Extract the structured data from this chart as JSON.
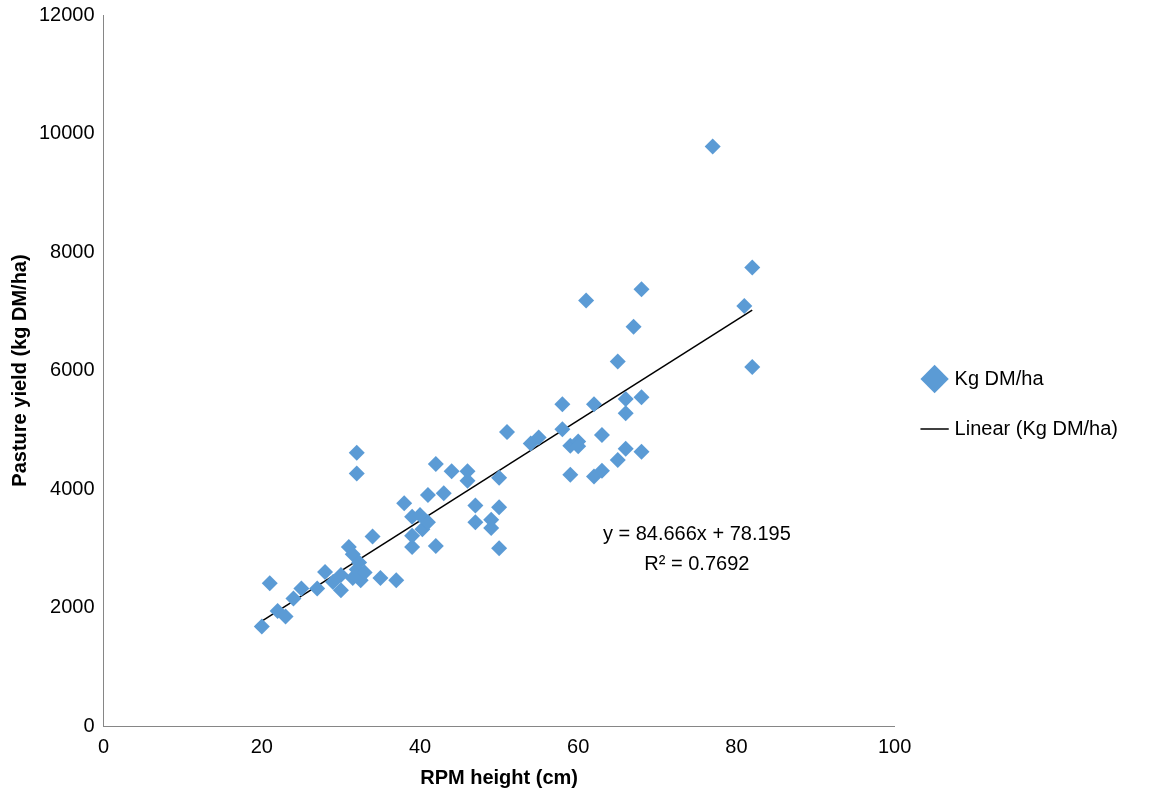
{
  "chart_data": {
    "type": "scatter",
    "xlabel": "RPM height (cm)",
    "ylabel": "Pasture yield (kg DM/ha)",
    "xlim": [
      0,
      100
    ],
    "xticks": [
      0,
      20,
      40,
      60,
      80,
      100
    ],
    "ylim": [
      0,
      12000
    ],
    "yticks": [
      0,
      2000,
      4000,
      6000,
      8000,
      10000,
      12000
    ],
    "grid": false,
    "legend": "right",
    "marker": "diamond",
    "series": [
      {
        "name": "Kg DM/ha",
        "color": "#5b9bd5",
        "x": [
          20,
          21,
          22,
          23,
          24,
          25,
          27,
          28,
          29,
          30,
          30,
          31,
          31.5,
          31.5,
          32,
          32,
          32,
          32.3,
          32.5,
          33,
          34,
          35,
          37,
          38,
          39,
          39,
          39,
          40,
          40.3,
          41,
          41,
          42,
          42,
          43,
          44,
          46,
          46,
          47,
          47,
          49,
          49,
          50,
          50,
          50,
          51,
          54,
          55,
          58,
          58,
          59,
          59,
          60,
          60,
          61,
          62,
          62,
          63,
          63,
          65,
          65,
          66,
          66,
          66,
          67,
          68,
          68,
          68,
          77,
          81,
          82,
          82
        ],
        "values": [
          1680,
          2410,
          1940,
          1850,
          2150,
          2320,
          2320,
          2600,
          2430,
          2290,
          2550,
          3020,
          2500,
          2900,
          4610,
          4260,
          2640,
          2760,
          2460,
          2590,
          3200,
          2500,
          2460,
          3760,
          3530,
          3020,
          3210,
          3560,
          3320,
          3900,
          3440,
          3040,
          4420,
          3930,
          4300,
          4300,
          4140,
          3720,
          3440,
          3480,
          3340,
          3690,
          3000,
          4190,
          4960,
          4770,
          4870,
          5010,
          5430,
          4730,
          4240,
          4800,
          4720,
          7180,
          5430,
          4210,
          4910,
          4310,
          6150,
          4490,
          4680,
          5280,
          5520,
          6740,
          7370,
          5550,
          4630,
          9780,
          7090,
          7740,
          6060
        ]
      },
      {
        "name": "Linear (Kg DM/ha)",
        "type": "line",
        "color": "#000000",
        "marker": "none",
        "line_style": "solid",
        "x": [
          20,
          82
        ],
        "values": [
          1770,
          7020
        ]
      }
    ],
    "annotations": [
      "y = 84.666x + 78.195",
      "R² = 0.7692"
    ]
  }
}
